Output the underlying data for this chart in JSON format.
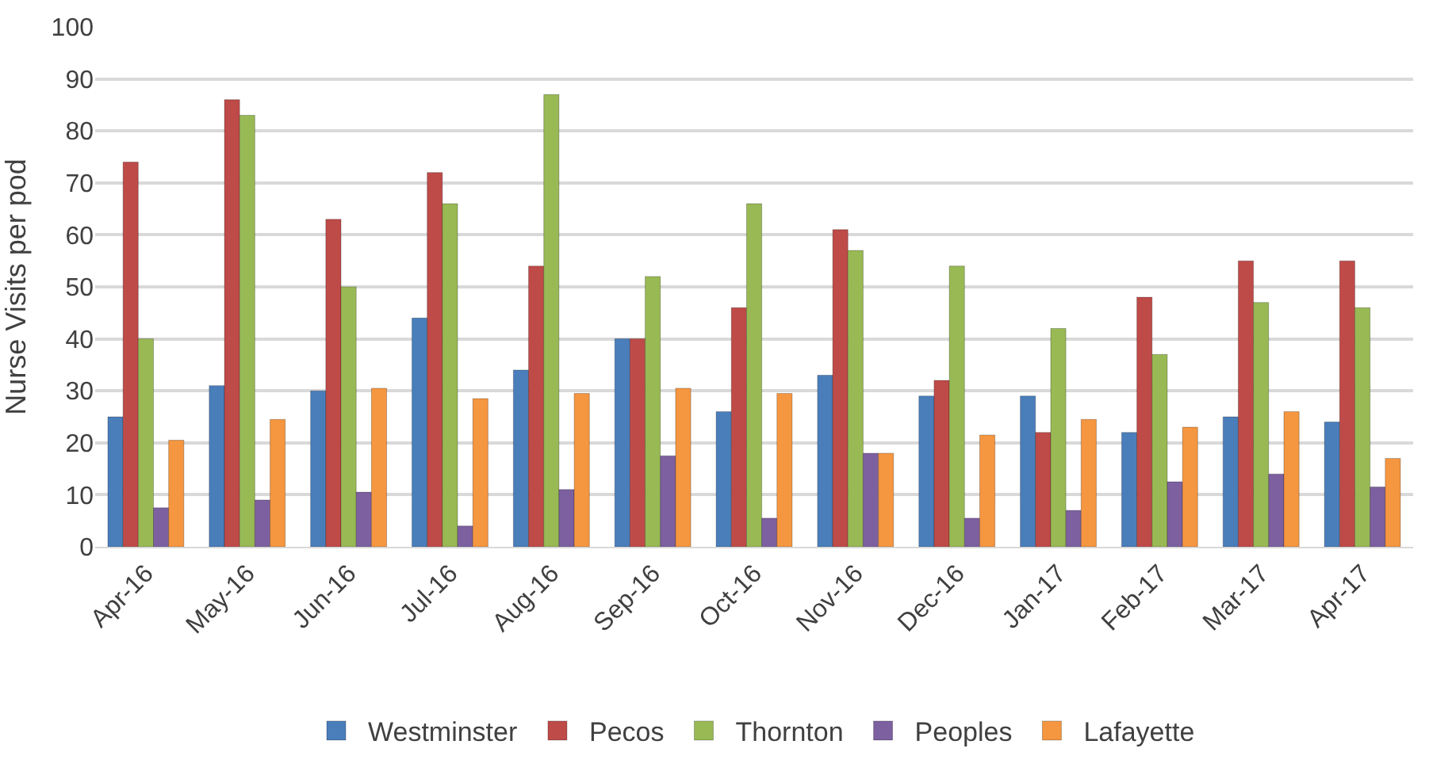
{
  "chart_data": {
    "type": "bar",
    "ylabel": "Nurse Visits per pod",
    "categories": [
      "Apr-16",
      "May-16",
      "Jun-16",
      "Jul-16",
      "Aug-16",
      "Sep-16",
      "Oct-16",
      "Nov-16",
      "Dec-16",
      "Jan-17",
      "Feb-17",
      "Mar-17",
      "Apr-17"
    ],
    "series": [
      {
        "name": "Westminster",
        "color": "#4a7ebb",
        "values": [
          25,
          31,
          30,
          44,
          34,
          40,
          26,
          33,
          29,
          29,
          22,
          25,
          24
        ]
      },
      {
        "name": "Pecos",
        "color": "#be4b48",
        "values": [
          74,
          86,
          63,
          72,
          54,
          40,
          46,
          61,
          32,
          22,
          48,
          55,
          55
        ]
      },
      {
        "name": "Thornton",
        "color": "#98b954",
        "values": [
          40,
          83,
          50,
          66,
          87,
          52,
          66,
          57,
          54,
          42,
          37,
          47,
          46
        ]
      },
      {
        "name": "Peoples",
        "color": "#7d60a0",
        "values": [
          7.5,
          9,
          10.5,
          4,
          11,
          17.5,
          5.5,
          18,
          5.5,
          7,
          12.5,
          14,
          11.5
        ]
      },
      {
        "name": "Lafayette",
        "color": "#f59640",
        "values": [
          20.5,
          24.5,
          30.5,
          28.5,
          29.5,
          30.5,
          29.5,
          18,
          21.5,
          24.5,
          23,
          26,
          17
        ]
      }
    ],
    "ylim": [
      0,
      100
    ],
    "yticks": [
      0,
      10,
      20,
      30,
      40,
      50,
      60,
      70,
      80,
      90,
      100
    ],
    "grid": "y",
    "legend": "bottom"
  }
}
